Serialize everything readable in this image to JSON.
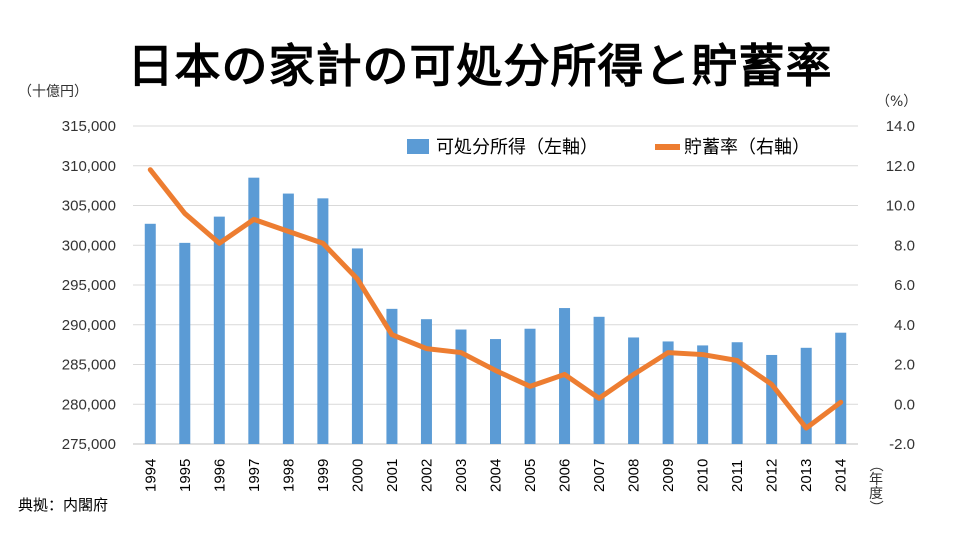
{
  "title": "日本の家計の可処分所得と貯蓄率",
  "source": "典拠：内閣府",
  "chart_data": {
    "type": "bar+line",
    "categories": [
      "1994",
      "1995",
      "1996",
      "1997",
      "1998",
      "1999",
      "2000",
      "2001",
      "2002",
      "2003",
      "2004",
      "2005",
      "2006",
      "2007",
      "2008",
      "2009",
      "2010",
      "2011",
      "2012",
      "2013",
      "2014"
    ],
    "series": [
      {
        "name": "可処分所得（左軸）",
        "type": "bar",
        "axis": "left",
        "color": "#5b9bd5",
        "values": [
          302700,
          300300,
          303600,
          308500,
          306500,
          305900,
          299600,
          292000,
          290700,
          289400,
          288200,
          289500,
          292100,
          291000,
          288400,
          287900,
          287400,
          287800,
          286200,
          287100,
          289000
        ]
      },
      {
        "name": "貯蓄率（右軸）",
        "type": "line",
        "axis": "right",
        "color": "#ed7d31",
        "values": [
          11.8,
          9.6,
          8.1,
          9.3,
          8.7,
          8.1,
          6.3,
          3.5,
          2.8,
          2.6,
          1.7,
          0.9,
          1.5,
          0.3,
          1.5,
          2.6,
          2.5,
          2.2,
          1.0,
          -1.2,
          0.1
        ]
      }
    ],
    "y_left": {
      "unit": "（十億円）",
      "ylim": [
        275000,
        315000
      ],
      "ticks": [
        "275,000",
        "280,000",
        "285,000",
        "290,000",
        "295,000",
        "300,000",
        "305,000",
        "310,000",
        "315,000"
      ]
    },
    "y_right": {
      "unit": "（%）",
      "ylim": [
        -2,
        14
      ],
      "ticks": [
        "-2.0",
        "0.0",
        "2.0",
        "4.0",
        "6.0",
        "8.0",
        "10.0",
        "12.0",
        "14.0"
      ]
    },
    "x_unit": "（年度）",
    "grid": true,
    "legend": "top-right"
  }
}
